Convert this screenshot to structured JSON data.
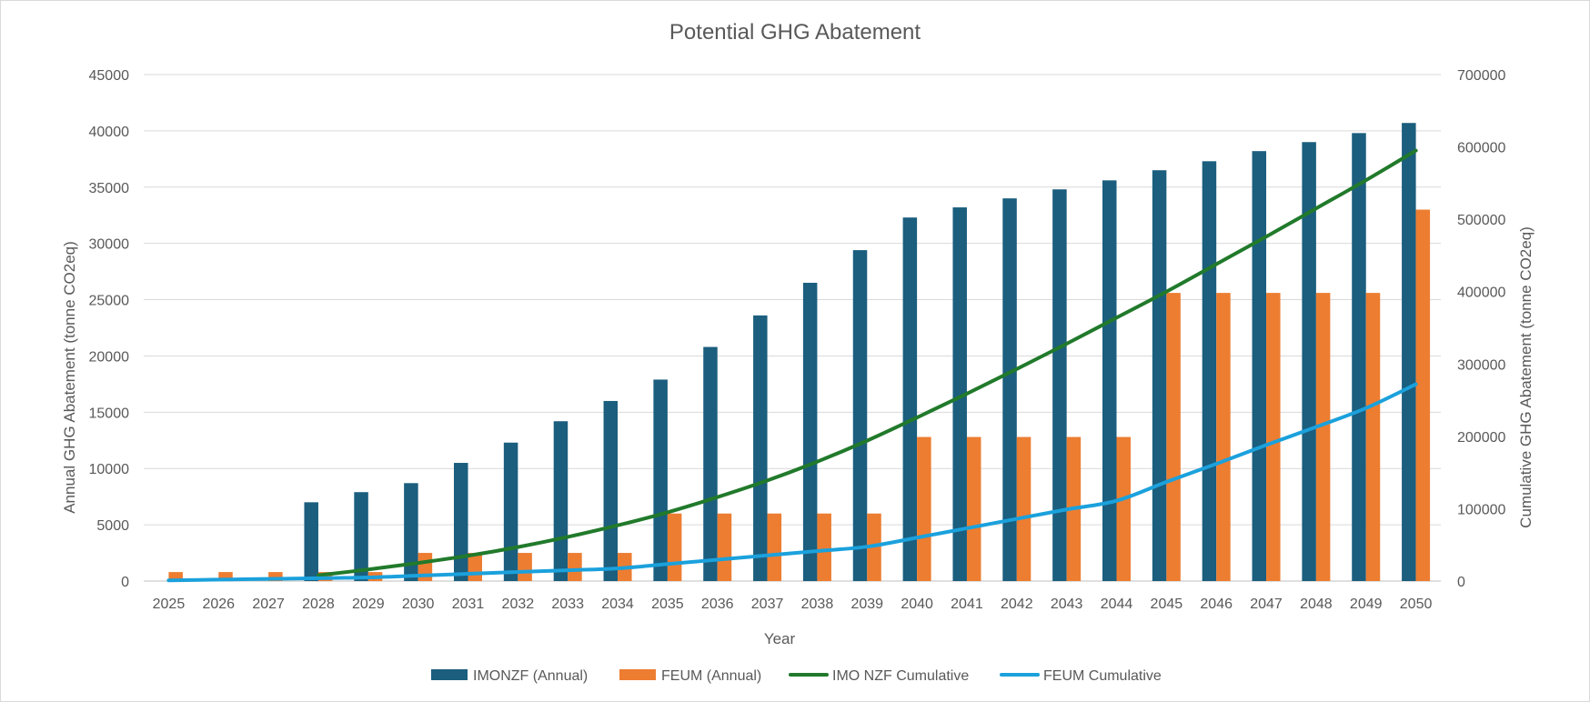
{
  "chart_data": {
    "type": "bar",
    "title": "Potential GHG Abatement",
    "xlabel": "Year",
    "ylabel_left": "Annual GHG Abatement (tonne CO2eq)",
    "ylabel_right": "Cumulative GHG Abatement (tonne CO2eq)",
    "ylim_left": [
      0,
      45000
    ],
    "ylim_right": [
      0,
      700000
    ],
    "yticks_left": [
      "0",
      "5000",
      "10000",
      "15000",
      "20000",
      "25000",
      "30000",
      "35000",
      "40000",
      "45000"
    ],
    "yticks_right": [
      "0",
      "100000",
      "200000",
      "300000",
      "400000",
      "500000",
      "600000",
      "700000"
    ],
    "grid": true,
    "legend_position": "bottom",
    "categories": [
      "2025",
      "2026",
      "2027",
      "2028",
      "2029",
      "2030",
      "2031",
      "2032",
      "2033",
      "2034",
      "2035",
      "2036",
      "2037",
      "2038",
      "2039",
      "2040",
      "2041",
      "2042",
      "2043",
      "2044",
      "2045",
      "2046",
      "2047",
      "2048",
      "2049",
      "2050"
    ],
    "series": [
      {
        "name": "IMONZF (Annual)",
        "kind": "bar",
        "axis": "left",
        "color": "#1b5e7e",
        "values": [
          0,
          0,
          0,
          7000,
          7900,
          8700,
          10500,
          12300,
          14200,
          16000,
          17900,
          20800,
          23600,
          26500,
          29400,
          32300,
          33200,
          34000,
          34800,
          35600,
          36500,
          37300,
          38200,
          39000,
          39800,
          40700
        ]
      },
      {
        "name": "FEUM (Annual)",
        "kind": "bar",
        "axis": "left",
        "color": "#ed7d31",
        "values": [
          800,
          800,
          800,
          800,
          800,
          2500,
          2500,
          2500,
          2500,
          2500,
          6000,
          6000,
          6000,
          6000,
          6000,
          12800,
          12800,
          12800,
          12800,
          12800,
          25600,
          25600,
          25600,
          25600,
          25600,
          33000
        ]
      },
      {
        "name": "IMO NZF Cumulative",
        "kind": "line",
        "axis": "right",
        "color": "#217a2b",
        "values": [
          null,
          null,
          null,
          8000,
          16000,
          25000,
          35000,
          47000,
          61000,
          77000,
          95000,
          116000,
          139000,
          165000,
          194000,
          226000,
          259000,
          293000,
          328000,
          364000,
          400000,
          438000,
          476000,
          515000,
          554000,
          595000
        ]
      },
      {
        "name": "FEUM Cumulative",
        "kind": "line",
        "axis": "right",
        "color": "#1ba1dc",
        "values": [
          1000,
          2000,
          3000,
          4000,
          5000,
          7500,
          10000,
          12500,
          15000,
          17500,
          23500,
          29500,
          35500,
          41500,
          47500,
          60000,
          73000,
          86000,
          99000,
          111000,
          137000,
          162000,
          188000,
          213000,
          239000,
          272000
        ]
      }
    ]
  }
}
